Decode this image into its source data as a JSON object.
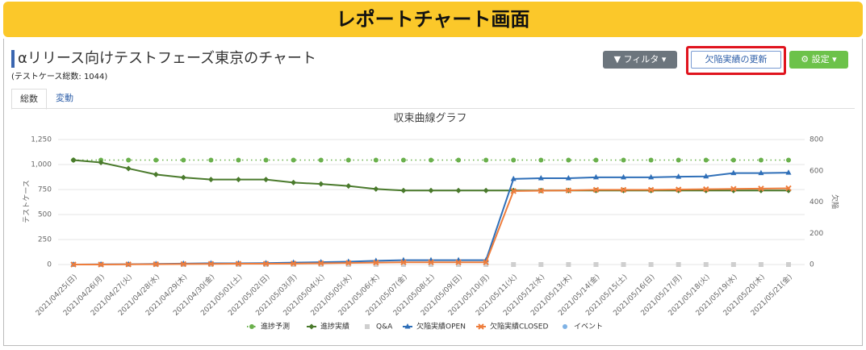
{
  "header": {
    "title": "レポートチャート画面"
  },
  "page": {
    "title": "αリリース向けテストフェーズ東京のチャート",
    "subtitle": "(テストケース総数: 1044)"
  },
  "buttons": [
    "フィルタ",
    "欠陥実績の更新",
    "設定"
  ],
  "tabs": [
    "総数",
    "変動"
  ],
  "chart_data": {
    "type": "line",
    "title": "収束曲線グラフ",
    "ylabel": "テストケース",
    "y2label": "欠陥",
    "categories": [
      "2021/04/25(日)",
      "2021/04/26(月)",
      "2021/04/27(火)",
      "2021/04/28(水)",
      "2021/04/29(木)",
      "2021/04/30(金)",
      "2021/05/01(土)",
      "2021/05/02(日)",
      "2021/05/03(月)",
      "2021/05/04(火)",
      "2021/05/05(水)",
      "2021/05/06(木)",
      "2021/05/07(金)",
      "2021/05/08(土)",
      "2021/05/09(日)",
      "2021/05/10(月)",
      "2021/05/11(火)",
      "2021/05/12(水)",
      "2021/05/13(木)",
      "2021/05/14(金)",
      "2021/05/15(土)",
      "2021/05/16(日)",
      "2021/05/17(月)",
      "2021/05/18(火)",
      "2021/05/19(水)",
      "2021/05/20(木)",
      "2021/05/21(金)"
    ],
    "ylim": [
      0,
      1250
    ],
    "yticks": [
      0,
      250,
      500,
      750,
      {
        "value": 1000,
        "label": "1,000"
      },
      {
        "value": 1250,
        "label": "1,250"
      }
    ],
    "y2lim": [
      0,
      800
    ],
    "y2ticks": [
      0,
      200,
      400,
      600,
      800
    ],
    "grid": true,
    "legend": "bottom",
    "series": [
      {
        "name": "進捗予測",
        "color": "#6ab04c",
        "marker": "circle",
        "line_style": "dotted",
        "values": [
          1044,
          1044,
          1044,
          1044,
          1044,
          1044,
          1044,
          1044,
          1044,
          1044,
          1044,
          1044,
          1044,
          1044,
          1044,
          1044,
          1044,
          1044,
          1044,
          1044,
          1044,
          1044,
          1044,
          1044,
          1044,
          1044,
          1044
        ]
      },
      {
        "name": "進捗実績",
        "color": "#4a7a2c",
        "marker": "diamond",
        "line_style": "solid",
        "values": [
          1044,
          1020,
          960,
          900,
          870,
          850,
          850,
          850,
          820,
          805,
          785,
          755,
          740,
          740,
          740,
          740,
          740,
          740,
          740,
          740,
          740,
          740,
          740,
          740,
          740,
          740,
          740
        ]
      },
      {
        "name": "Q&A",
        "color": "#cfcfcf",
        "marker": "square",
        "line_style": "none",
        "values": [
          0,
          0,
          0,
          0,
          0,
          0,
          0,
          0,
          0,
          0,
          0,
          0,
          0,
          0,
          0,
          0,
          0,
          0,
          0,
          0,
          0,
          0,
          0,
          0,
          0,
          0,
          0
        ]
      },
      {
        "name": "欠陥実績OPEN",
        "color": "#2f6fb8",
        "marker": "triangle",
        "line_style": "solid",
        "axis": "y2",
        "values": [
          0,
          1,
          2,
          4,
          6,
          8,
          8,
          9,
          12,
          15,
          18,
          24,
          28,
          28,
          28,
          28,
          548,
          552,
          552,
          558,
          558,
          558,
          562,
          564,
          585,
          585,
          588
        ]
      },
      {
        "name": "欠陥実績CLOSED",
        "color": "#ee7d3c",
        "marker": "cross",
        "line_style": "solid",
        "axis": "y2",
        "values": [
          0,
          0,
          1,
          2,
          3,
          4,
          5,
          5,
          6,
          8,
          10,
          12,
          14,
          14,
          14,
          14,
          470,
          472,
          474,
          478,
          478,
          478,
          480,
          482,
          484,
          486,
          488
        ]
      },
      {
        "name": "イベント",
        "color": "#7fb2e5",
        "marker": "circle",
        "line_style": "none",
        "values": [
          null,
          null,
          null,
          null,
          null,
          null,
          null,
          null,
          null,
          null,
          null,
          null,
          null,
          null,
          null,
          null,
          null,
          null,
          null,
          null,
          null,
          null,
          null,
          null,
          null,
          null,
          null
        ]
      }
    ]
  }
}
